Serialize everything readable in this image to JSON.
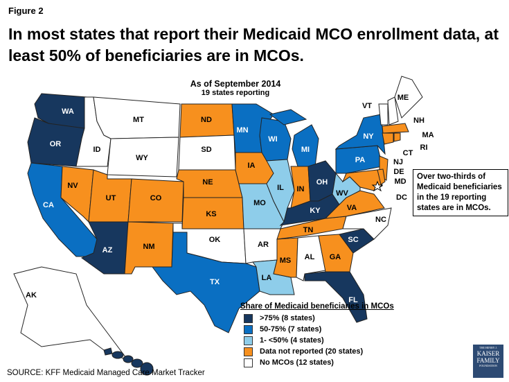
{
  "figure_label": "Figure 2",
  "title": "In most states that report their Medicaid MCO enrollment data, at least 50% of beneficiaries are in MCOs.",
  "subtitle": {
    "date": "As of September 2014",
    "count": "19 states reporting"
  },
  "colors": {
    "gt75": "#17375e",
    "50to75": "#0a6fc2",
    "1to50": "#8ecdea",
    "not_reported": "#f7901e",
    "none": "#ffffff"
  },
  "states": [
    {
      "abbr": "WA",
      "cat": "gt75"
    },
    {
      "abbr": "OR",
      "cat": "gt75"
    },
    {
      "abbr": "CA",
      "cat": "50to75"
    },
    {
      "abbr": "NV",
      "cat": "not_reported"
    },
    {
      "abbr": "ID",
      "cat": "none"
    },
    {
      "abbr": "MT",
      "cat": "none"
    },
    {
      "abbr": "WY",
      "cat": "none"
    },
    {
      "abbr": "UT",
      "cat": "not_reported"
    },
    {
      "abbr": "CO",
      "cat": "not_reported"
    },
    {
      "abbr": "AZ",
      "cat": "gt75"
    },
    {
      "abbr": "NM",
      "cat": "not_reported"
    },
    {
      "abbr": "ND",
      "cat": "not_reported"
    },
    {
      "abbr": "SD",
      "cat": "none"
    },
    {
      "abbr": "NE",
      "cat": "not_reported"
    },
    {
      "abbr": "KS",
      "cat": "not_reported"
    },
    {
      "abbr": "OK",
      "cat": "none"
    },
    {
      "abbr": "TX",
      "cat": "50to75"
    },
    {
      "abbr": "MN",
      "cat": "50to75"
    },
    {
      "abbr": "IA",
      "cat": "not_reported"
    },
    {
      "abbr": "MO",
      "cat": "1to50"
    },
    {
      "abbr": "AR",
      "cat": "none"
    },
    {
      "abbr": "LA",
      "cat": "1to50"
    },
    {
      "abbr": "WI",
      "cat": "50to75"
    },
    {
      "abbr": "IL",
      "cat": "1to50"
    },
    {
      "abbr": "MI",
      "cat": "50to75"
    },
    {
      "abbr": "IN",
      "cat": "not_reported"
    },
    {
      "abbr": "OH",
      "cat": "gt75"
    },
    {
      "abbr": "KY",
      "cat": "gt75"
    },
    {
      "abbr": "TN",
      "cat": "not_reported"
    },
    {
      "abbr": "MS",
      "cat": "not_reported"
    },
    {
      "abbr": "AL",
      "cat": "none"
    },
    {
      "abbr": "GA",
      "cat": "not_reported"
    },
    {
      "abbr": "FL",
      "cat": "gt75"
    },
    {
      "abbr": "SC",
      "cat": "gt75"
    },
    {
      "abbr": "NC",
      "cat": "none"
    },
    {
      "abbr": "VA",
      "cat": "not_reported"
    },
    {
      "abbr": "WV",
      "cat": "1to50"
    },
    {
      "abbr": "PA",
      "cat": "50to75"
    },
    {
      "abbr": "NY",
      "cat": "50to75"
    },
    {
      "abbr": "NJ",
      "cat": "not_reported"
    },
    {
      "abbr": "MD",
      "cat": "not_reported"
    },
    {
      "abbr": "DE",
      "cat": "not_reported"
    },
    {
      "abbr": "DC",
      "cat": "not_reported"
    },
    {
      "abbr": "VT",
      "cat": "none"
    },
    {
      "abbr": "NH",
      "cat": "none"
    },
    {
      "abbr": "ME",
      "cat": "none"
    },
    {
      "abbr": "MA",
      "cat": "not_reported"
    },
    {
      "abbr": "CT",
      "cat": "not_reported"
    },
    {
      "abbr": "RI",
      "cat": "not_reported"
    },
    {
      "abbr": "AK",
      "cat": "none"
    },
    {
      "abbr": "HI",
      "cat": "gt75"
    }
  ],
  "callout": "Over two-thirds of Medicaid beneficiaries in the 19 reporting states are in MCOs.",
  "legend": {
    "title": "Share of Medicaid beneficiaries in MCOs",
    "items": [
      {
        "label": ">75% (8 states)",
        "cat": "gt75"
      },
      {
        "label": "50-75% (7 states)",
        "cat": "50to75"
      },
      {
        "label": "1- <50% (4 states)",
        "cat": "1to50"
      },
      {
        "label": "Data not reported (20 states)",
        "cat": "not_reported"
      },
      {
        "label": "No MCOs (12 states)",
        "cat": "none"
      }
    ]
  },
  "source": "SOURCE: KFF Medicaid Managed Care Market Tracker",
  "logo": {
    "line1": "THE HENRY J.",
    "line2": "KAISER",
    "line3": "FAMILY",
    "line4": "FOUNDATION"
  }
}
